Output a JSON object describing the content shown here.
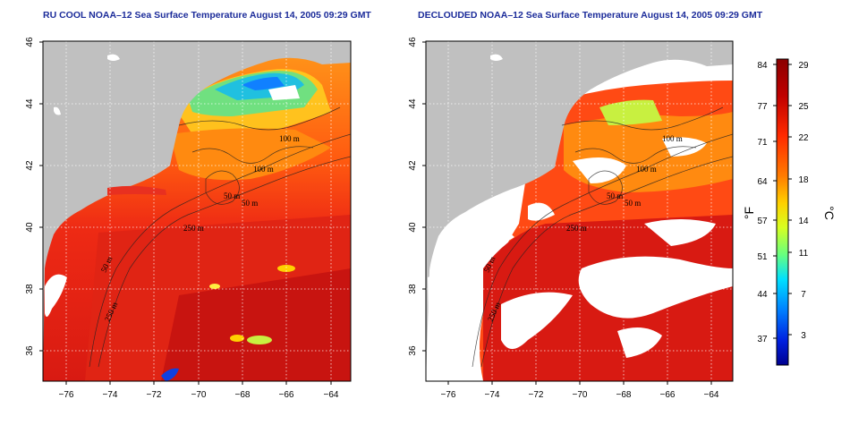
{
  "panels": [
    {
      "title": "RU COOL NOAA–12 Sea Surface Temperature August 14, 2005 09:29 GMT",
      "x_ticks": [
        "−76",
        "−74",
        "−72",
        "−70",
        "−68",
        "−66",
        "−64"
      ],
      "y_ticks": [
        "46",
        "44",
        "42",
        "40",
        "38",
        "36"
      ],
      "contour_labels": [
        "100 m",
        "100 m",
        "50 m",
        "50 m",
        "250 m",
        "50 m",
        "250 m"
      ]
    },
    {
      "title": "DECLOUDED NOAA–12 Sea Surface Temperature August 14, 2005 09:29 GMT",
      "x_ticks": [
        "−76",
        "−74",
        "−72",
        "−70",
        "−68",
        "−66",
        "−64"
      ],
      "y_ticks": [
        "46",
        "44",
        "42",
        "40",
        "38",
        "36"
      ],
      "contour_labels": [
        "100 m",
        "100 m",
        "50 m",
        "50 m",
        "250 m",
        "50 m",
        "250 m"
      ]
    }
  ],
  "colorbar": {
    "fahrenheit_ticks": [
      "84",
      "77",
      "71",
      "64",
      "57",
      "51",
      "44",
      "37"
    ],
    "celsius_ticks": [
      "29",
      "25",
      "22",
      "18",
      "14",
      "11",
      "7",
      "3"
    ],
    "fahrenheit_unit": "°F",
    "celsius_unit": "°C",
    "colors": [
      "#8b0000",
      "#c00000",
      "#ff2a00",
      "#ff7a00",
      "#ffd000",
      "#d8ff20",
      "#66ff80",
      "#00e0ff",
      "#0080ff",
      "#0020e0",
      "#000090"
    ]
  },
  "colors": {
    "land": "#c0c0c0",
    "ocean_warm": "#e8281a",
    "ocean_hot": "#c81010",
    "cloud": "#ffffff",
    "title": "#1c2c9a"
  }
}
